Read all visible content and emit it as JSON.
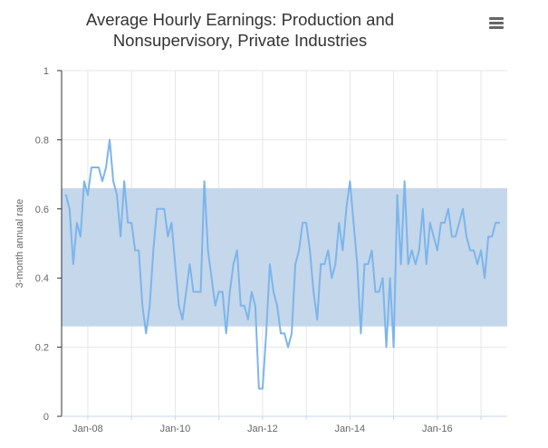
{
  "chart_data": {
    "type": "line",
    "title_line1": "Average Hourly Earnings: Production and",
    "title_line2": "Nonsupervisory, Private Industries",
    "ylabel": "3-month annual rate",
    "xlabel": "",
    "ylim": [
      0,
      1
    ],
    "y_ticks": [
      "0",
      "0.2",
      "0.4",
      "0.6",
      "0.8",
      "1"
    ],
    "y_tick_values": [
      0,
      0.2,
      0.4,
      0.6,
      0.8,
      1
    ],
    "x_tick_labels": [
      "Jan-08",
      "Jan-10",
      "Jan-12",
      "Jan-14",
      "Jan-16"
    ],
    "x_tick_years": [
      2008,
      2010,
      2012,
      2014,
      2016
    ],
    "x_range": [
      2007.4,
      2017.6
    ],
    "band": {
      "from": 0.26,
      "to": 0.66,
      "color": "#c5d7ea"
    },
    "series": [
      {
        "name": "3-month annual rate",
        "color": "#7cb5ec",
        "start_year": 2007.5,
        "step": 0.08333333,
        "values": [
          0.64,
          0.6,
          0.44,
          0.56,
          0.52,
          0.68,
          0.64,
          0.72,
          0.72,
          0.72,
          0.68,
          0.72,
          0.8,
          0.68,
          0.64,
          0.52,
          0.68,
          0.56,
          0.56,
          0.48,
          0.48,
          0.32,
          0.24,
          0.32,
          0.48,
          0.6,
          0.6,
          0.6,
          0.52,
          0.56,
          0.44,
          0.32,
          0.28,
          0.36,
          0.44,
          0.36,
          0.36,
          0.36,
          0.68,
          0.48,
          0.4,
          0.32,
          0.36,
          0.36,
          0.24,
          0.36,
          0.44,
          0.48,
          0.32,
          0.32,
          0.28,
          0.36,
          0.32,
          0.08,
          0.08,
          0.24,
          0.44,
          0.36,
          0.32,
          0.24,
          0.24,
          0.2,
          0.24,
          0.44,
          0.48,
          0.56,
          0.56,
          0.48,
          0.36,
          0.28,
          0.44,
          0.44,
          0.48,
          0.4,
          0.44,
          0.56,
          0.48,
          0.6,
          0.68,
          0.56,
          0.44,
          0.24,
          0.44,
          0.44,
          0.48,
          0.36,
          0.36,
          0.4,
          0.2,
          0.4,
          0.2,
          0.64,
          0.44,
          0.68,
          0.44,
          0.48,
          0.44,
          0.48,
          0.6,
          0.44,
          0.56,
          0.52,
          0.48,
          0.56,
          0.56,
          0.6,
          0.52,
          0.52,
          0.56,
          0.6,
          0.52,
          0.48,
          0.48,
          0.44,
          0.48,
          0.4,
          0.52,
          0.52,
          0.56,
          0.56
        ]
      }
    ]
  },
  "icons": {
    "menu": "hamburger-menu-icon"
  }
}
